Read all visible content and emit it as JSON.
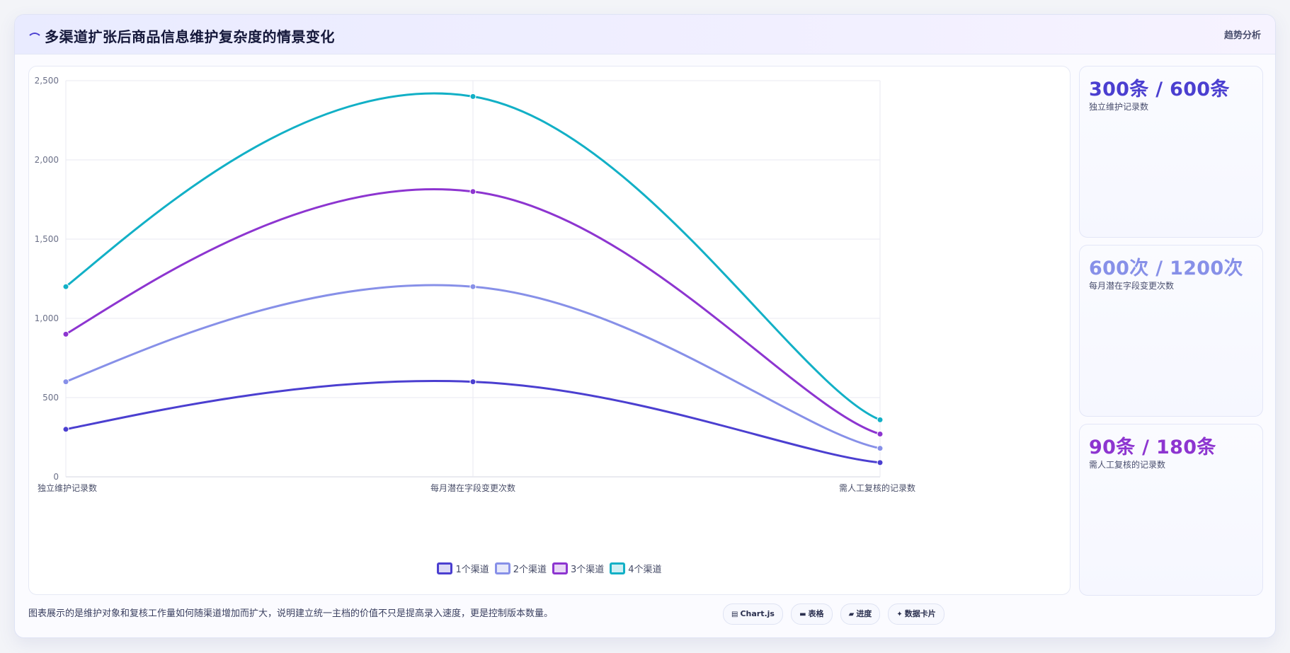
{
  "header": {
    "icon": "line-trend-icon",
    "title": "多渠道扩张后商品信息维护复杂度的情景变化",
    "tag": "趋势分析"
  },
  "chart_data": {
    "type": "line",
    "categories": [
      "独立维护记录数",
      "每月潜在字段变更次数",
      "需人工复核的记录数"
    ],
    "series": [
      {
        "name": "1个渠道",
        "values": [
          300,
          600,
          90
        ],
        "color": "#4b3fd0"
      },
      {
        "name": "2个渠道",
        "values": [
          600,
          1200,
          180
        ],
        "color": "#8790e8"
      },
      {
        "name": "3个渠道",
        "values": [
          900,
          1800,
          270
        ],
        "color": "#8d35d0"
      },
      {
        "name": "4个渠道",
        "values": [
          1200,
          2400,
          360
        ],
        "color": "#12b0c6"
      }
    ],
    "ylim": [
      0,
      2500
    ],
    "yticks": [
      0,
      500,
      1000,
      1500,
      2000,
      2500
    ],
    "ytick_labels": [
      "0",
      "500",
      "1,000",
      "1,500",
      "2,000",
      "2,500"
    ],
    "grid": true,
    "legend": "bottom",
    "smooth": true
  },
  "stats": [
    {
      "value": "300条 / 600条",
      "label": "独立维护记录数",
      "color": "#4b3fd0"
    },
    {
      "value": "600次 / 1200次",
      "label": "每月潜在字段变更次数",
      "color": "#8790e8"
    },
    {
      "value": "90条 / 180条",
      "label": "需人工复核的记录数",
      "color": "#8d35d0"
    }
  ],
  "footer": {
    "note": "图表展示的是维护对象和复核工作量如何随渠道增加而扩大，说明建立统一主档的价值不只是提高录入速度，更是控制版本数量。",
    "chips": [
      {
        "icon": "▤",
        "label": "Chart.js"
      },
      {
        "icon": "▬",
        "label": "表格"
      },
      {
        "icon": "▰",
        "label": "进度"
      },
      {
        "icon": "✦",
        "label": "数据卡片"
      }
    ]
  }
}
